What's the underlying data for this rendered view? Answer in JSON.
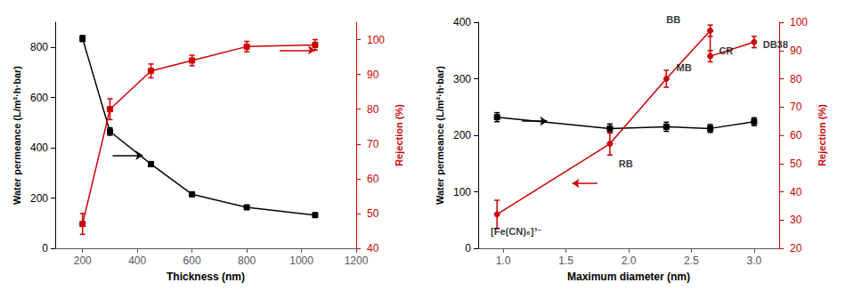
{
  "chart_data": [
    {
      "type": "line",
      "xlabel": "Thickness (nm)",
      "ylabel": "Water permeance (L/m²·h·bar)",
      "y2label": "Rejection (%)",
      "xlim": [
        100,
        1200
      ],
      "xticks": [
        200,
        400,
        600,
        800,
        1000,
        1200
      ],
      "ylim": [
        0,
        900
      ],
      "yticks": [
        0,
        200,
        400,
        600,
        800
      ],
      "y2lim": [
        40,
        105
      ],
      "y2ticks": [
        40,
        50,
        60,
        70,
        80,
        90,
        100
      ],
      "grid": false,
      "series": [
        {
          "x": [
            200,
            300,
            450,
            600,
            800,
            1050
          ],
          "values": [
            835,
            465,
            335,
            215,
            163,
            132
          ],
          "errors": [
            12,
            15,
            10,
            8,
            8,
            8
          ],
          "color": "#000000",
          "marker": "square",
          "axis": "y"
        },
        {
          "x": [
            200,
            300,
            450,
            600,
            800,
            1050
          ],
          "values": [
            47,
            80,
            91,
            94,
            98,
            98.5
          ],
          "errors": [
            3,
            3,
            2,
            1.5,
            1.5,
            1.5
          ],
          "color": "#cc0000",
          "marker": "square",
          "axis": "y2"
        }
      ],
      "arrows": [
        {
          "from": [
            310,
            370
          ],
          "to": [
            420,
            370
          ],
          "color": "#000000",
          "axis": "y"
        },
        {
          "from": [
            920,
            97
          ],
          "to": [
            1050,
            97
          ],
          "color": "#cc0000",
          "axis": "y2"
        }
      ]
    },
    {
      "type": "line",
      "xlabel": "Maximum diameter (nm)",
      "ylabel": "Water permeance (L/m²·h·bar)",
      "y2label": "Rejection (%)",
      "xlim": [
        0.8,
        3.2
      ],
      "xticks": [
        {
          "value": 1,
          "label": "1.0"
        },
        1.5,
        {
          "value": 2,
          "label": "2.0"
        },
        2.5,
        {
          "value": 3,
          "label": "3.0"
        }
      ],
      "ylim": [
        0,
        400
      ],
      "yticks": [
        0,
        100,
        200,
        300,
        400
      ],
      "y2lim": [
        20,
        100
      ],
      "y2ticks": [
        20,
        30,
        40,
        50,
        60,
        70,
        80,
        90,
        100
      ],
      "grid": false,
      "series": [
        {
          "x": [
            0.95,
            1.85,
            2.3,
            2.65,
            3.0
          ],
          "values": [
            232,
            212,
            215,
            212,
            224
          ],
          "errors": [
            8,
            8,
            8,
            7,
            7
          ],
          "color": "#000000",
          "marker": "square",
          "axis": "y"
        },
        {
          "x": [
            0.95,
            1.85,
            2.3,
            2.65,
            2.65,
            3.0
          ],
          "values": [
            32,
            57,
            80,
            97,
            88,
            93
          ],
          "errors": [
            5,
            4,
            3,
            2,
            2,
            2
          ],
          "color": "#cc0000",
          "marker": "circle",
          "axis": "y2"
        }
      ],
      "annotations": [
        {
          "text": "[Fe(CN)₆]³⁻",
          "x": 0.9,
          "y": 26,
          "axis": "y2",
          "color": "#000000"
        },
        {
          "text": "RB",
          "x": 1.92,
          "y": 50,
          "axis": "y2",
          "color": "#000000"
        },
        {
          "text": "MB",
          "x": 2.38,
          "y": 84,
          "axis": "y2",
          "color": "#000000"
        },
        {
          "text": "CR",
          "x": 2.72,
          "y": 90,
          "axis": "y2",
          "color": "#000000"
        },
        {
          "text": "BB",
          "x": 2.3,
          "y": 101,
          "axis": "y2",
          "color": "#000000"
        },
        {
          "text": "DB38",
          "x": 3.07,
          "y": 92,
          "axis": "y2",
          "color": "#000000"
        }
      ],
      "arrows": [
        {
          "from": [
            1.15,
            225
          ],
          "to": [
            1.35,
            225
          ],
          "color": "#000000",
          "axis": "y"
        },
        {
          "from": [
            1.75,
            43
          ],
          "to": [
            1.55,
            43
          ],
          "color": "#cc0000",
          "axis": "y2"
        }
      ]
    }
  ]
}
